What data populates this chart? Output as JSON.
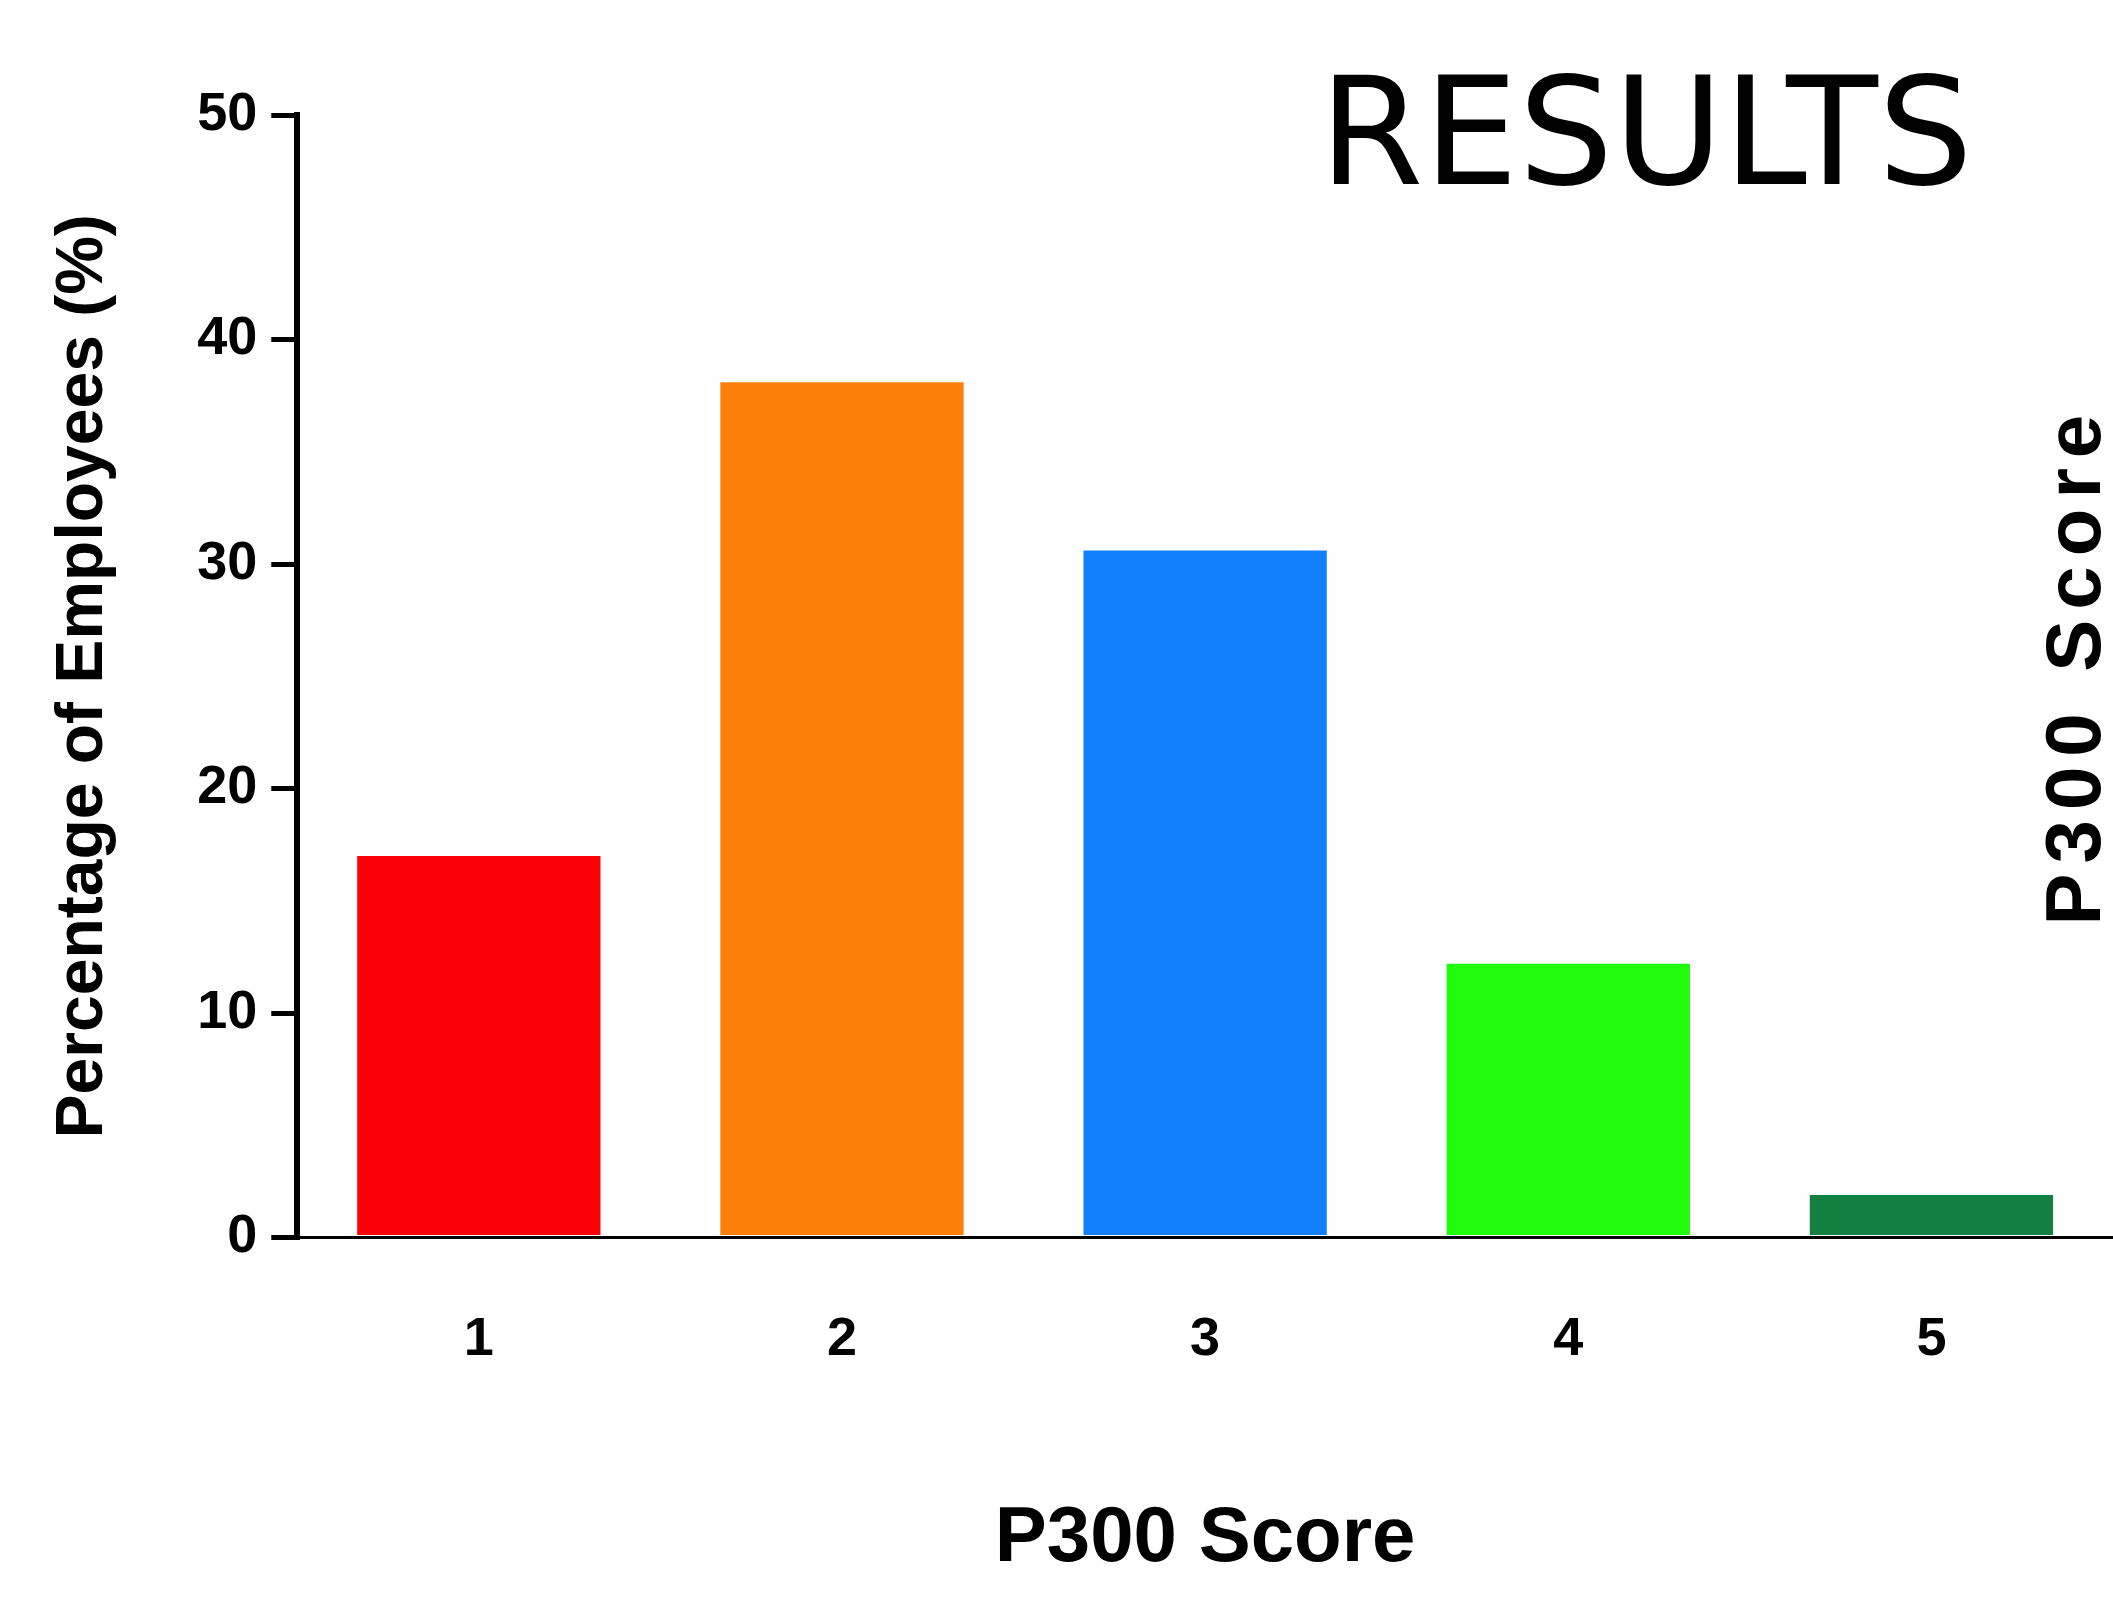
{
  "chart_data": {
    "type": "bar",
    "title": "RESULTS",
    "xlabel": "P300 Score",
    "ylabel": "Percentage of Employees (%)",
    "categories": [
      "1",
      "2",
      "3",
      "4",
      "5"
    ],
    "values": [
      17.0,
      38.1,
      30.6,
      12.2,
      1.9
    ],
    "colors": [
      "#fc0007",
      "#fc800b",
      "#117ffc",
      "#21fc0d",
      "#118040"
    ],
    "ylim": [
      0,
      50
    ],
    "yticks": [
      0,
      10,
      20,
      30,
      40,
      50
    ],
    "grid": false,
    "legend": false,
    "annotations": [
      "P300 Score"
    ]
  }
}
